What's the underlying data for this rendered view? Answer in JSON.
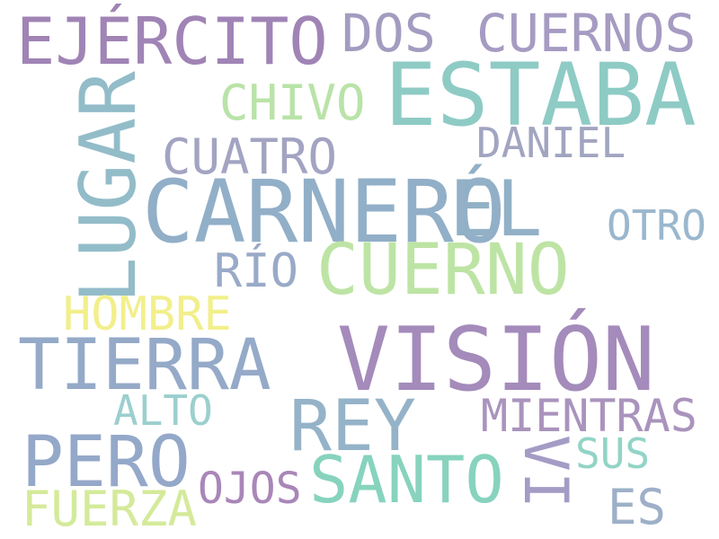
{
  "words": {
    "ejercito": {
      "text": "EJÉRCITO",
      "color": "#a084b5"
    },
    "dos": {
      "text": "DOS",
      "color": "#a49cc0"
    },
    "cuernos": {
      "text": "CUERNOS",
      "color": "#a69bc2"
    },
    "estaba": {
      "text": "ESTABA",
      "color": "#8ecbc5"
    },
    "lugar": {
      "text": "LUGAR",
      "color": "#93bcc9"
    },
    "chivo": {
      "text": "CHIVO",
      "color": "#b9e3a8"
    },
    "daniel": {
      "text": "DANIEL",
      "color": "#a2a5c0"
    },
    "cuatro": {
      "text": "CUATRO",
      "color": "#a3a4c2"
    },
    "carnero": {
      "text": "CARNERO",
      "color": "#92afc8"
    },
    "el": {
      "text": "ÉL",
      "color": "#92b1c6"
    },
    "otro": {
      "text": "OTRO",
      "color": "#9ab7cd"
    },
    "rio": {
      "text": "RÍO",
      "color": "#99aac8"
    },
    "cuerno": {
      "text": "CUERNO",
      "color": "#bde4a4"
    },
    "hombre": {
      "text": "HOMBRE",
      "color": "#f2ef8c"
    },
    "vision": {
      "text": "VISIÓN",
      "color": "#a48bbb"
    },
    "tierra": {
      "text": "TIERRA",
      "color": "#95aac8"
    },
    "alto": {
      "text": "ALTO",
      "color": "#9bcfce"
    },
    "rey": {
      "text": "REY",
      "color": "#95b3c8"
    },
    "mientras": {
      "text": "MIENTRAS",
      "color": "#aa93bd"
    },
    "pero": {
      "text": "PERO",
      "color": "#94a8c9"
    },
    "vi": {
      "text": "VI",
      "color": "#a49cc5"
    },
    "sus": {
      "text": "SUS",
      "color": "#92d4c6"
    },
    "santo": {
      "text": "SANTO",
      "color": "#87d3bd"
    },
    "ojos": {
      "text": "OJOS",
      "color": "#a986b8"
    },
    "fuerza": {
      "text": "FUERZA",
      "color": "#d4ea9a"
    },
    "es": {
      "text": "ES",
      "color": "#9eb0c8"
    }
  }
}
